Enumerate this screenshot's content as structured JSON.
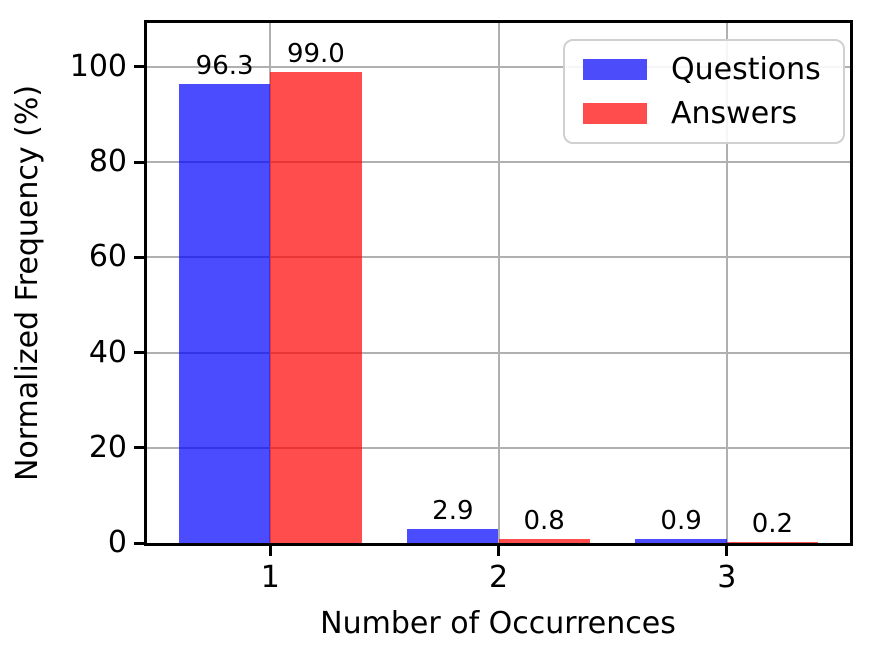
{
  "chart_data": {
    "type": "bar",
    "title": "",
    "xlabel": "Number of Occurrences",
    "ylabel": "Normalized Frequency (%)",
    "categories": [
      "1",
      "2",
      "3"
    ],
    "x_positions": [
      1,
      2,
      3
    ],
    "series": [
      {
        "name": "Questions",
        "color": "rgba(0,0,255,0.7)",
        "solid_color": "#4C4CFA",
        "values": [
          96.3,
          2.9,
          0.9
        ]
      },
      {
        "name": "Answers",
        "color": "rgba(255,0,0,0.7)",
        "solid_color": "#FF4D4D",
        "values": [
          99.0,
          0.8,
          0.2
        ]
      }
    ],
    "bar_value_labels": [
      [
        "96.3",
        "2.9",
        "0.9"
      ],
      [
        "99.0",
        "0.8",
        "0.2"
      ]
    ],
    "bar_width": 0.4,
    "yticks": [
      0,
      20,
      40,
      60,
      80,
      100
    ],
    "ylim": [
      0,
      109.2
    ],
    "xlim": [
      0.46,
      3.54
    ],
    "grid": true,
    "legend_position": "upper right",
    "colors": {
      "grid": "#b0b0b0",
      "spine": "#000000",
      "background": "#ffffff",
      "legend_border": "#d0d0d0",
      "text": "#000000"
    }
  }
}
